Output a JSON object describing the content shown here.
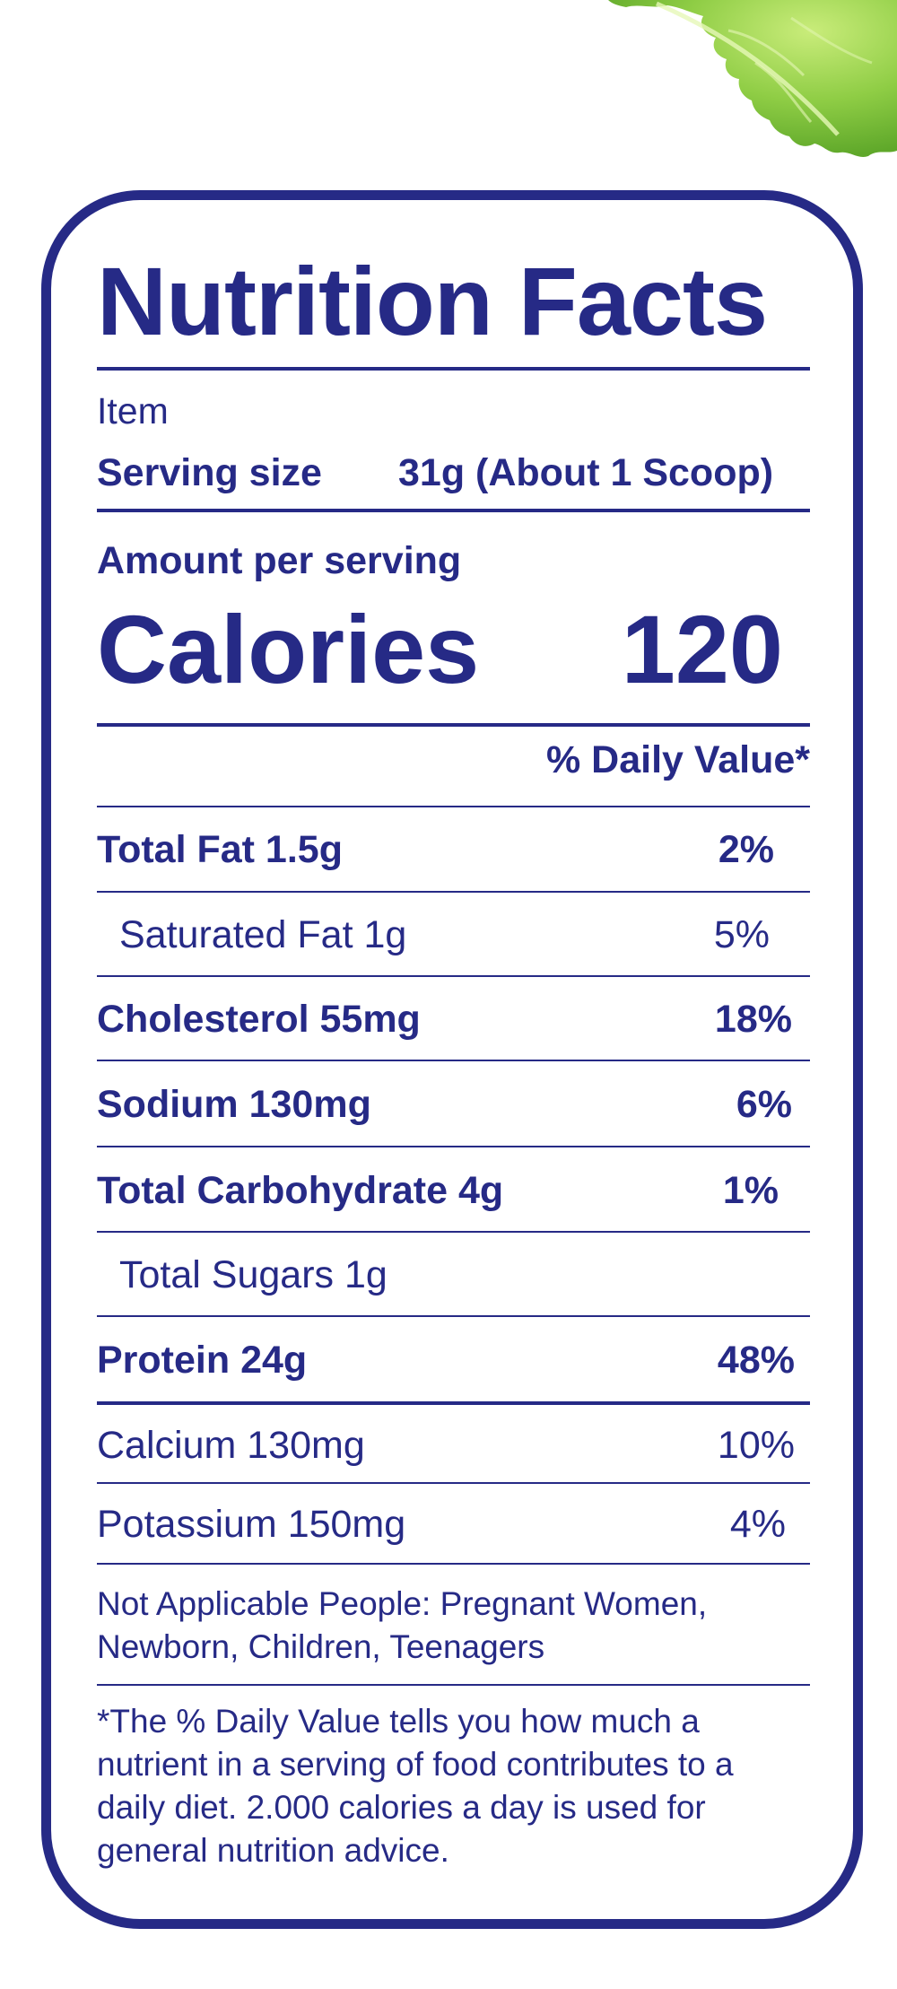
{
  "header": {
    "title": "Nutrition Facts"
  },
  "item_label": "Item",
  "serving": {
    "label": "Serving size",
    "value": "31g (About 1 Scoop)"
  },
  "amount_per_serving": "Amount per serving",
  "calories": {
    "label": "Calories",
    "value": "120"
  },
  "daily_value_header": "% Daily Value*",
  "nutrients": [
    {
      "label": "Total Fat 1.5g",
      "pct": "2%"
    },
    {
      "label": "Saturated Fat 1g",
      "pct": "5%"
    },
    {
      "label": "Cholesterol 55mg",
      "pct": "18%"
    },
    {
      "label": "Sodium 130mg",
      "pct": "6%"
    },
    {
      "label": "Total Carbohydrate 4g",
      "pct": "1%"
    },
    {
      "label": "Total Sugars 1g",
      "pct": ""
    },
    {
      "label": "Protein 24g",
      "pct": "48%"
    },
    {
      "label": "Calcium 130mg",
      "pct": "10%"
    },
    {
      "label": "Potassium 150mg",
      "pct": "4%"
    }
  ],
  "not_applicable": "Not Applicable People: Pregnant Women, Newborn, Children, Teenagers",
  "footnote": "*The % Daily Value tells you how much a nutrient in a serving of food contributes to a daily diet. 2.000 calories a day is used for general nutrition advice.",
  "colors": {
    "ink": "#262a86",
    "lettuce": "#8cc63f",
    "background": "#ffffff"
  }
}
